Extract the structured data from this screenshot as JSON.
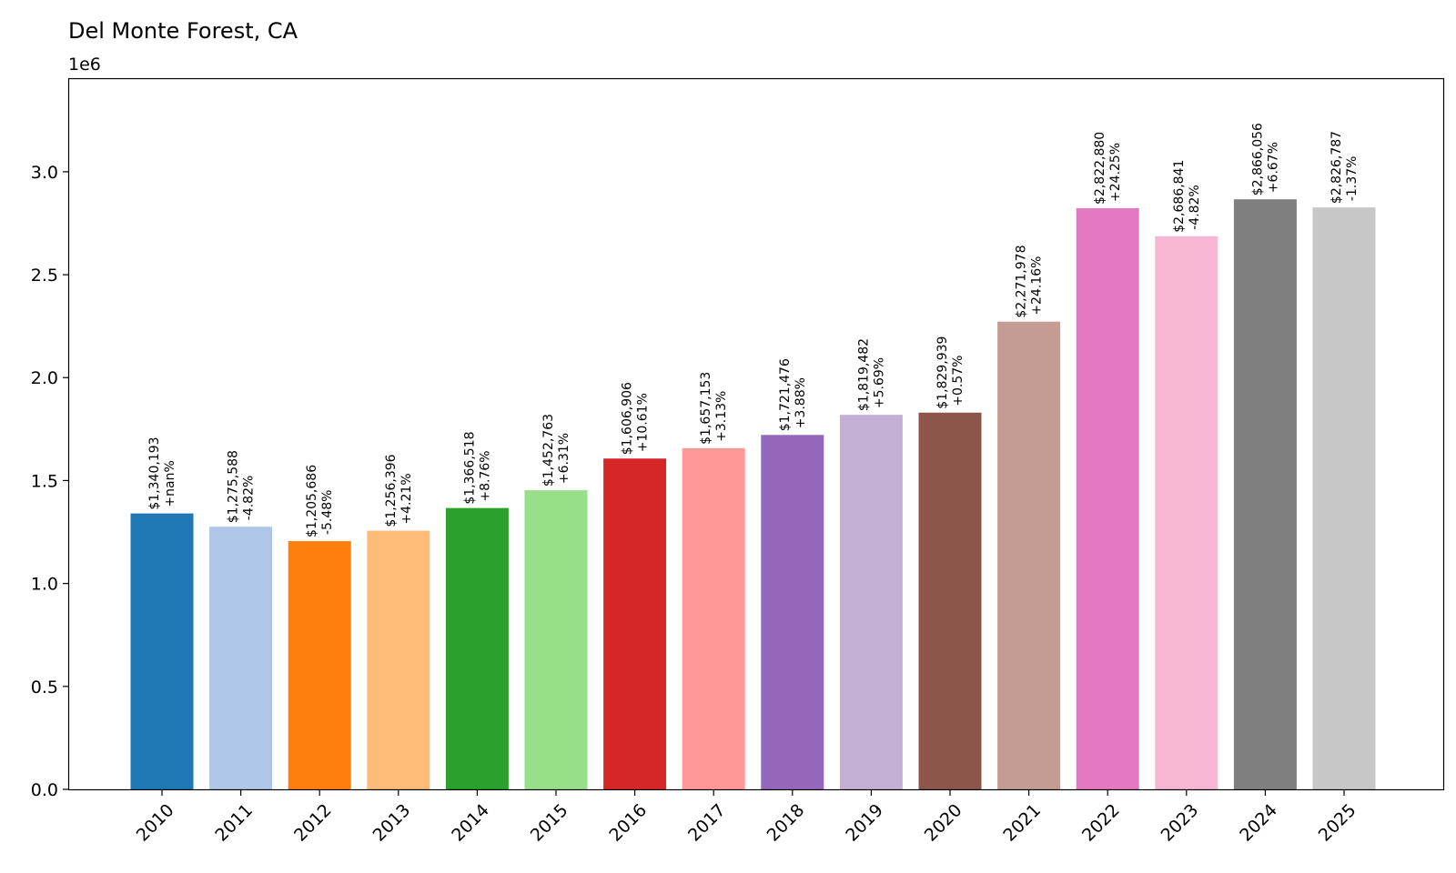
{
  "chart_data": {
    "type": "bar",
    "title": "Del Monte Forest, CA",
    "offset_label": "1e6",
    "xlabel": "",
    "ylabel": "",
    "ylim": [
      0,
      3.45
    ],
    "yticks": [
      0.0,
      0.5,
      1.0,
      1.5,
      2.0,
      2.5,
      3.0
    ],
    "ytick_labels": [
      "0.0",
      "0.5",
      "1.0",
      "1.5",
      "2.0",
      "2.5",
      "3.0"
    ],
    "grid": false,
    "categories": [
      "2010",
      "2011",
      "2012",
      "2013",
      "2014",
      "2015",
      "2016",
      "2017",
      "2018",
      "2019",
      "2020",
      "2021",
      "2022",
      "2023",
      "2024",
      "2025"
    ],
    "values": [
      1340193,
      1275588,
      1205686,
      1256396,
      1366518,
      1452763,
      1606906,
      1657153,
      1721476,
      1819482,
      1829939,
      2271978,
      2822880,
      2686841,
      2866056,
      2826787
    ],
    "value_labels": [
      "$1,340,193",
      "$1,275,588",
      "$1,205,686",
      "$1,256,396",
      "$1,366,518",
      "$1,452,763",
      "$1,606,906",
      "$1,657,153",
      "$1,721,476",
      "$1,819,482",
      "$1,829,939",
      "$2,271,978",
      "$2,822,880",
      "$2,686,841",
      "$2,866,056",
      "$2,826,787"
    ],
    "change_labels": [
      "+nan%",
      "-4.82%",
      "-5.48%",
      "+4.21%",
      "+8.76%",
      "+6.31%",
      "+10.61%",
      "+3.13%",
      "+3.88%",
      "+5.69%",
      "+0.57%",
      "+24.16%",
      "+24.25%",
      "-4.82%",
      "+6.67%",
      "-1.37%"
    ],
    "colors": [
      "#1f77b4",
      "#aec7e8",
      "#ff7f0e",
      "#ffbb78",
      "#2ca02c",
      "#98df8a",
      "#d62728",
      "#ff9896",
      "#9467bd",
      "#c5b0d5",
      "#8c564b",
      "#c49c94",
      "#e377c2",
      "#f7b6d2",
      "#7f7f7f",
      "#c7c7c7"
    ]
  }
}
